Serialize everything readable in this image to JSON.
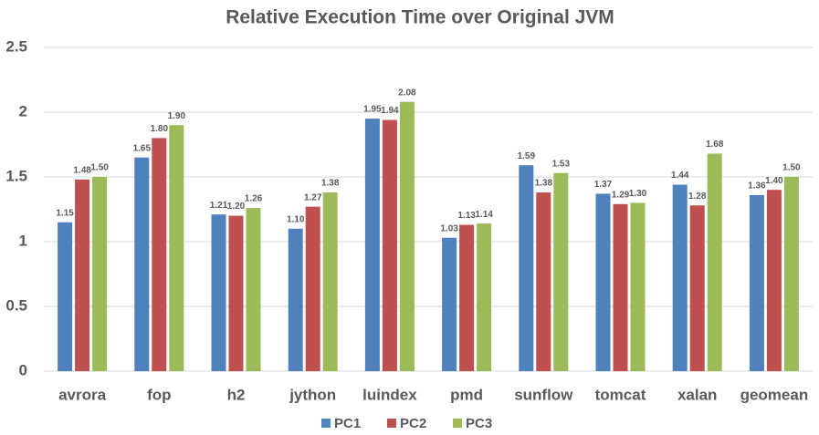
{
  "chart_data": {
    "type": "bar",
    "title": "Relative Execution Time over Original JVM",
    "categories": [
      "avrora",
      "fop",
      "h2",
      "jython",
      "luindex",
      "pmd",
      "sunflow",
      "tomcat",
      "xalan",
      "geomean"
    ],
    "series": [
      {
        "name": "PC1",
        "color": "#4f81bd",
        "values": [
          1.15,
          1.65,
          1.21,
          1.1,
          1.95,
          1.03,
          1.59,
          1.37,
          1.44,
          1.36
        ],
        "value_labels": [
          "1.15",
          "1.65",
          "1.21",
          "1.10",
          "1.95",
          "1.03",
          "1.59",
          "1.37",
          "1.44",
          "1.36"
        ]
      },
      {
        "name": "PC2",
        "color": "#c0504d",
        "values": [
          1.48,
          1.8,
          1.2,
          1.27,
          1.94,
          1.13,
          1.38,
          1.29,
          1.28,
          1.4
        ],
        "value_labels": [
          "1.48",
          "1.80",
          "1.20",
          "1.27",
          "1.94",
          "1.13",
          "1.38",
          "1.29",
          "1.28",
          "1.40"
        ]
      },
      {
        "name": "PC3",
        "color": "#9bbb59",
        "values": [
          1.5,
          1.9,
          1.26,
          1.38,
          2.08,
          1.14,
          1.53,
          1.3,
          1.68,
          1.5
        ],
        "value_labels": [
          "1.50",
          "1.90",
          "1.26",
          "1.38",
          "2.08",
          "1.14",
          "1.53",
          "1.30",
          "1.68",
          "1.50"
        ]
      }
    ],
    "ylim": [
      0,
      2.5
    ],
    "yticks": [
      0,
      0.5,
      1,
      1.5,
      2,
      2.5
    ],
    "grid": true,
    "legend": "bottom"
  }
}
